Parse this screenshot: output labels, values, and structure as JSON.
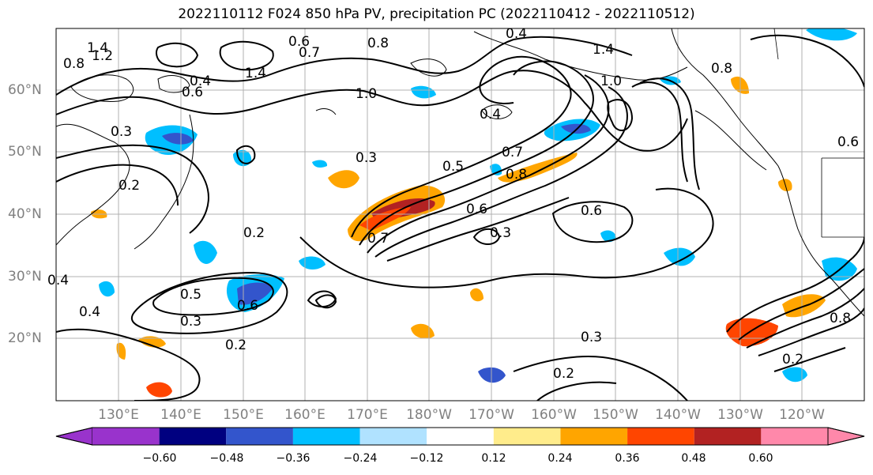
{
  "title": "2022110112 F024 850 hPa PV, precipitation PC (2022110412 - 2022110512)",
  "lat_labels": [
    "60°N",
    "50°N",
    "40°N",
    "30°N",
    "20°N"
  ],
  "lon_labels": [
    "130°E",
    "140°E",
    "150°E",
    "160°E",
    "170°E",
    "180°W",
    "170°W",
    "160°W",
    "150°W",
    "140°W",
    "130°W",
    "120°W"
  ],
  "colorbar": {
    "colors": [
      "#9933cc",
      "#000080",
      "#3355cc",
      "#00bfff",
      "#b0e2ff",
      "#ffffff",
      "#ffec8b",
      "#ffa500",
      "#ff4500",
      "#b22222",
      "#ff88aa"
    ],
    "ticks": [
      "−0.60",
      "−0.48",
      "−0.36",
      "−0.24",
      "−0.12",
      "0.12",
      "0.24",
      "0.36",
      "0.48",
      "0.60"
    ]
  },
  "contour_labels": [
    "1.4",
    "1.2",
    "0.8",
    "0.6",
    "0.7",
    "1.4",
    "0.8",
    "0.4",
    "1.0",
    "1.4",
    "1.0",
    "0.8",
    "0.4",
    "0.6",
    "0.3",
    "0.5",
    "0.7",
    "0.8",
    "0.6",
    "0.3",
    "0.7",
    "0.6",
    "0.4",
    "0.2",
    "0.2",
    "0.5",
    "0.6",
    "0.3",
    "0.2",
    "0.3",
    "0.2",
    "0.4",
    "0.2",
    "0.8",
    "0.6",
    "0.3",
    "0.4"
  ]
}
